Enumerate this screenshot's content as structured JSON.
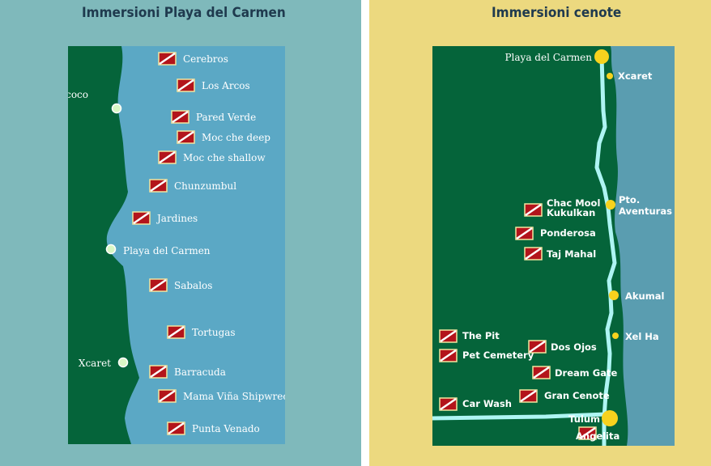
{
  "left": {
    "title": "Immersioni Playa del Carmen",
    "towns": [
      "Xcalacoco",
      "Playa del Carmen",
      "Xcaret"
    ],
    "dive_sites": [
      "Cerebros",
      "Los Arcos",
      "Pared Verde",
      "Moc che deep",
      "Moc che shallow",
      "Chunzumbul",
      "Jardines",
      "Sabalos",
      "Tortugas",
      "Barracuda",
      "Mama Viña Shipwreck",
      "Punta Venado"
    ]
  },
  "right": {
    "title": "Immersioni cenote",
    "towns": [
      "Playa del Carmen",
      "Xcaret",
      "Pto.",
      "Aventuras",
      "Akumal",
      "Xel Ha",
      "Tulum"
    ],
    "cenotes": [
      "Chac Mool",
      "Kukulkan",
      "Ponderosa",
      "Taj Mahal",
      "The Pit",
      "Pet Cemetery",
      "Car Wash",
      "Dos Ojos",
      "Dream Gate",
      "Gran Cenote",
      "Angelita"
    ]
  },
  "colors": {
    "left_background": "#7fb9bb",
    "right_background": "#ecd97f",
    "land": "#05643a",
    "sea": "#5ba8c5",
    "road": "#aef5f3",
    "town_marker": "#f7d21e",
    "dive_flag": "#b3141b"
  },
  "icons": {
    "dive_site": "dive-flag-icon",
    "town": "town-dot-icon"
  }
}
